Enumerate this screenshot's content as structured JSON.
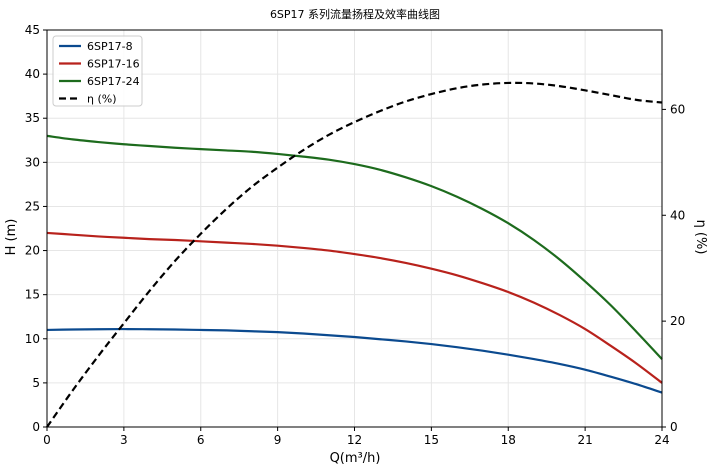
{
  "chart_data": {
    "type": "line",
    "title": "6SP17 系列流量扬程及效率曲线图",
    "xlabel": "Q(m³/h)",
    "ylabel": "H (m)",
    "y2label": "η (%)",
    "xlim": [
      0,
      24
    ],
    "ylim": [
      0,
      45
    ],
    "y2lim": [
      0,
      75
    ],
    "xticks": [
      0,
      3,
      6,
      9,
      12,
      15,
      18,
      21,
      24
    ],
    "yticks": [
      0,
      5,
      10,
      15,
      20,
      25,
      30,
      35,
      40,
      45
    ],
    "y2ticks": [
      0,
      20,
      40,
      60
    ],
    "grid": true,
    "legend_position": "top-left",
    "x": [
      0,
      1,
      2,
      3,
      4,
      5,
      6,
      7,
      8,
      9,
      10,
      11,
      12,
      13,
      14,
      15,
      16,
      17,
      18,
      19,
      20,
      21,
      22,
      23,
      24
    ],
    "series": [
      {
        "name": "6SP17-8",
        "axis": "left",
        "color": "#0b4a8f",
        "style": "solid",
        "values": [
          11.0,
          11.05,
          11.08,
          11.1,
          11.08,
          11.05,
          11.0,
          10.95,
          10.85,
          10.75,
          10.6,
          10.4,
          10.2,
          9.95,
          9.7,
          9.4,
          9.05,
          8.65,
          8.2,
          7.7,
          7.15,
          6.5,
          5.7,
          4.85,
          3.9
        ]
      },
      {
        "name": "6SP17-16",
        "axis": "left",
        "color": "#b8221c",
        "style": "solid",
        "values": [
          22.0,
          21.8,
          21.6,
          21.45,
          21.3,
          21.2,
          21.05,
          20.9,
          20.75,
          20.55,
          20.3,
          20.0,
          19.6,
          19.15,
          18.6,
          17.95,
          17.2,
          16.3,
          15.3,
          14.1,
          12.7,
          11.1,
          9.2,
          7.2,
          5.0
        ]
      },
      {
        "name": "6SP17-24",
        "axis": "left",
        "color": "#1d6b1d",
        "style": "solid",
        "values": [
          33.0,
          32.6,
          32.3,
          32.05,
          31.85,
          31.65,
          31.5,
          31.35,
          31.2,
          30.95,
          30.65,
          30.3,
          29.8,
          29.15,
          28.3,
          27.3,
          26.1,
          24.7,
          23.1,
          21.2,
          19.0,
          16.5,
          13.8,
          10.8,
          7.7
        ]
      },
      {
        "name": "η (%)",
        "axis": "right",
        "color": "#000000",
        "style": "dashed",
        "values": [
          0,
          6.9,
          13.4,
          19.6,
          25.7,
          31.4,
          36.5,
          41.2,
          45.4,
          49.0,
          52.3,
          55.2,
          57.6,
          59.7,
          61.5,
          62.9,
          64.0,
          64.7,
          65.0,
          64.9,
          64.4,
          63.6,
          62.7,
          61.8,
          61.3
        ]
      }
    ]
  }
}
